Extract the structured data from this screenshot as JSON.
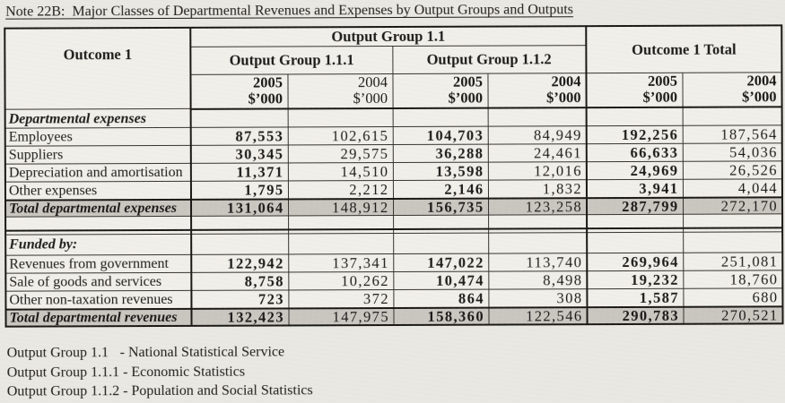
{
  "title": "Note 22B:  Major Classes of Departmental Revenues and Expenses by Output Groups and Outputs",
  "table": {
    "outcome_header": "Outcome 1",
    "group_header": "Output Group 1.1",
    "subgroup1_header": "Output Group 1.1.1",
    "subgroup2_header": "Output Group 1.1.2",
    "total_header": "Outcome 1 Total",
    "columns": [
      {
        "year": "2005",
        "unit": "$’000"
      },
      {
        "year": "2004",
        "unit": "$’000"
      },
      {
        "year": "2005",
        "unit": "$’000"
      },
      {
        "year": "2004",
        "unit": "$’000"
      },
      {
        "year": "2005",
        "unit": "$’000"
      },
      {
        "year": "2004",
        "unit": "$’000"
      }
    ],
    "sections": [
      {
        "label": "Departmental expenses",
        "rows": [
          {
            "label": "Employees",
            "values": [
              "87,553",
              "102,615",
              "104,703",
              "84,949",
              "192,256",
              "187,564"
            ]
          },
          {
            "label": "Suppliers",
            "values": [
              "30,345",
              "29,575",
              "36,288",
              "24,461",
              "66,633",
              "54,036"
            ]
          },
          {
            "label": "Depreciation and amortisation",
            "values": [
              "11,371",
              "14,510",
              "13,598",
              "12,016",
              "24,969",
              "26,526"
            ]
          },
          {
            "label": "Other expenses",
            "values": [
              "1,795",
              "2,212",
              "2,146",
              "1,832",
              "3,941",
              "4,044"
            ]
          }
        ],
        "total": {
          "label": "Total departmental expenses",
          "values": [
            "131,064",
            "148,912",
            "156,735",
            "123,258",
            "287,799",
            "272,170"
          ]
        }
      },
      {
        "label": "Funded by:",
        "rows": [
          {
            "label": "Revenues from government",
            "values": [
              "122,942",
              "137,341",
              "147,022",
              "113,740",
              "269,964",
              "251,081"
            ]
          },
          {
            "label": "Sale of goods and services",
            "values": [
              "8,758",
              "10,262",
              "10,474",
              "8,498",
              "19,232",
              "18,760"
            ]
          },
          {
            "label": "Other non-taxation revenues",
            "values": [
              "723",
              "372",
              "864",
              "308",
              "1,587",
              "680"
            ]
          }
        ],
        "total": {
          "label": "Total departmental revenues",
          "values": [
            "132,423",
            "147,975",
            "158,360",
            "122,546",
            "290,783",
            "270,521"
          ]
        }
      }
    ]
  },
  "footnotes": [
    {
      "term": "Output Group 1.1",
      "desc": "- National Statistical Service"
    },
    {
      "term": "Output Group 1.1.1",
      "desc": "- Economic Statistics"
    },
    {
      "term": "Output Group 1.1.2",
      "desc": "- Population and Social Statistics"
    }
  ]
}
